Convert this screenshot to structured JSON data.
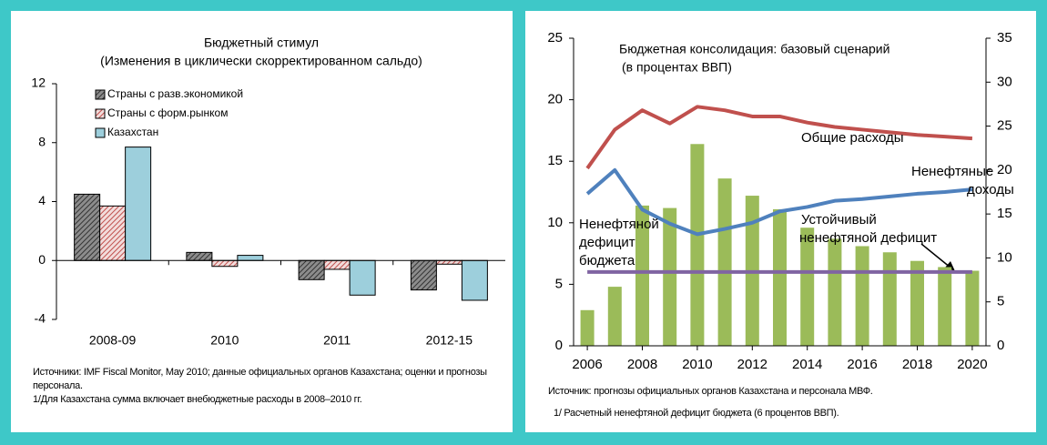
{
  "chart_data": [
    {
      "type": "bar",
      "title": "Бюджетный стимул",
      "subtitle": "(Изменения в циклически скорректированном сальдо)",
      "categories": [
        "2008-09",
        "2010",
        "2011",
        "2012-15"
      ],
      "series": [
        {
          "name": "Страны с разв.экономикой",
          "color": "#8c8c8c",
          "hatch_color": "#333333",
          "values": [
            4.5,
            0.55,
            -1.3,
            -2.0
          ]
        },
        {
          "name": "Страны с форм.рынком",
          "color": "#f2dcdb",
          "hatch_color": "#c0504d",
          "values": [
            3.7,
            -0.4,
            -0.6,
            -0.25
          ]
        },
        {
          "name": "Казахстан",
          "color": "#9dcfdc",
          "values": [
            7.7,
            0.35,
            -2.35,
            -2.7
          ]
        }
      ],
      "ylim": [
        -4,
        12
      ],
      "yticks": [
        -4,
        0,
        4,
        8,
        12
      ],
      "legend": "upper left",
      "notes": [
        "Источники: IMF Fiscal Monitor, May 2010; данные официальных органов Казахстана; оценки и прогнозы персонала.",
        "1/Для Казахстана сумма включает внебюджетные расходы в 2008–2010 гг."
      ]
    },
    {
      "type": "combo",
      "title": "Бюджетная консолидация: базовый сценарий",
      "subtitle": "(в процентах ВВП)",
      "x": [
        2006,
        2007,
        2008,
        2009,
        2010,
        2011,
        2012,
        2013,
        2014,
        2015,
        2016,
        2017,
        2018,
        2019,
        2020
      ],
      "series": [
        {
          "type": "bar",
          "color": "#9bbb59",
          "values": [
            2.9,
            4.8,
            11.4,
            11.2,
            16.4,
            13.6,
            12.2,
            11.1,
            9.6,
            8.7,
            8.1,
            7.6,
            6.9,
            6.4,
            6.1
          ]
        },
        {
          "type": "line",
          "axis": "y2",
          "color": "#c0504d",
          "values": [
            20.2,
            24.6,
            26.8,
            25.3,
            27.2,
            26.8,
            26.1,
            26.1,
            25.4,
            24.9,
            24.6,
            24.3,
            24.0,
            23.8,
            23.6
          ]
        },
        {
          "type": "line",
          "axis": "y2",
          "color": "#4f81bd",
          "values": [
            17.3,
            20.0,
            15.5,
            13.9,
            12.7,
            13.3,
            14.0,
            15.3,
            15.8,
            16.5,
            16.7,
            17.0,
            17.3,
            17.5,
            17.8
          ]
        },
        {
          "type": "line",
          "color": "#8064a2",
          "values": [
            6,
            6,
            6,
            6,
            6,
            6,
            6,
            6,
            6,
            6,
            6,
            6,
            6,
            6,
            6
          ]
        }
      ],
      "xlim": [
        2005.5,
        2020.5
      ],
      "xticks": [
        2006,
        2008,
        2010,
        2012,
        2014,
        2016,
        2018,
        2020
      ],
      "ylim": [
        0,
        25
      ],
      "yticks": [
        0,
        5,
        10,
        15,
        20,
        25
      ],
      "y2lim": [
        0,
        35
      ],
      "y2ticks": [
        0,
        5,
        10,
        15,
        20,
        25,
        30,
        35
      ],
      "annotations": [
        [
          "Общие расходы"
        ],
        [
          "Ненефтяные",
          "доходы"
        ],
        [
          "Устойчивый",
          "ненефтяной дефицит"
        ],
        [
          "Ненефтяной",
          "дефицит",
          "бюджета"
        ]
      ],
      "notes": [
        "Источник: прогнозы официальных органов Казахстана и персонала МВФ.",
        "1/ Расчетный ненефтяной дефицит бюджета (6 процентов ВВП)."
      ]
    }
  ]
}
